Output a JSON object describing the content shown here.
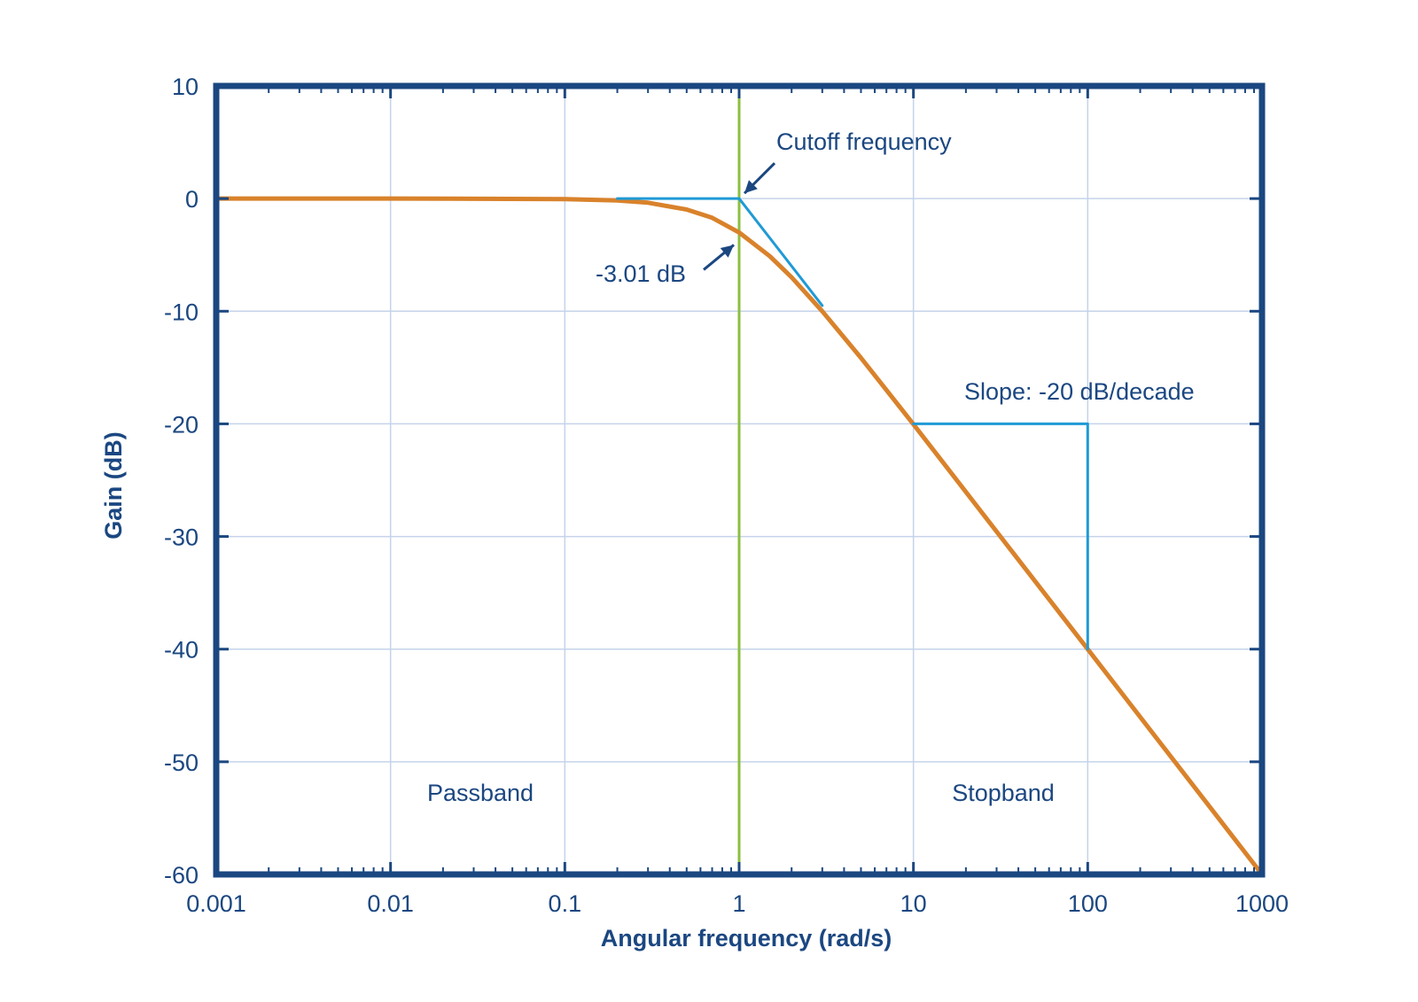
{
  "chart_data": {
    "type": "line",
    "title": "",
    "xlabel": "Angular frequency (rad/s)",
    "ylabel": "Gain (dB)",
    "x_scale": "log",
    "xlim": [
      0.001,
      1000
    ],
    "ylim": [
      -60,
      10
    ],
    "grid": true,
    "x_ticks": [
      0.001,
      0.01,
      0.1,
      1,
      10,
      100,
      1000
    ],
    "x_tick_labels": [
      "0.001",
      "0.01",
      "0.1",
      "1",
      "10",
      "100",
      "1000"
    ],
    "y_ticks": [
      10,
      0,
      -10,
      -20,
      -30,
      -40,
      -50,
      -60
    ],
    "y_tick_labels": [
      "10",
      "0",
      "-10",
      "-20",
      "-30",
      "-40",
      "-50",
      "-60"
    ],
    "series": [
      {
        "kind": "gain-curve",
        "color": "#d9822b",
        "x": [
          0.001,
          0.01,
          0.1,
          0.2,
          0.3,
          0.5,
          0.7,
          1,
          1.5,
          2,
          3,
          5,
          10,
          100,
          1000
        ],
        "y": [
          0,
          0,
          -0.04,
          -0.17,
          -0.37,
          -0.97,
          -1.7,
          -3.01,
          -5.12,
          -6.99,
          -10,
          -14.15,
          -20.04,
          -40,
          -60
        ]
      },
      {
        "kind": "asymptote",
        "color": "#1f9ad6",
        "x": [
          0.2,
          1,
          3
        ],
        "y": [
          0,
          0,
          -9.5
        ]
      },
      {
        "kind": "slope-indicator",
        "color": "#1f9ad6",
        "x": [
          10,
          100,
          100
        ],
        "y": [
          -20,
          -20,
          -40
        ]
      }
    ],
    "cutoff_line": {
      "x": 1,
      "color": "#8cbf3f"
    },
    "annotations": {
      "cutoff": {
        "text": "Cutoff frequency",
        "point": [
          1,
          0
        ]
      },
      "minus3db": {
        "text": "-3.01 dB",
        "point": [
          1,
          -3.8
        ]
      },
      "slope": {
        "text": "Slope: -20 dB/decade"
      },
      "passband": {
        "text": "Passband"
      },
      "stopband": {
        "text": "Stopband"
      }
    },
    "colors": {
      "frame": "#1b4781",
      "grid": "#c5d3ea",
      "text": "#1b4781",
      "curve": "#d9822b",
      "asymptote": "#1f9ad6",
      "cutoff": "#8cbf3f"
    }
  }
}
